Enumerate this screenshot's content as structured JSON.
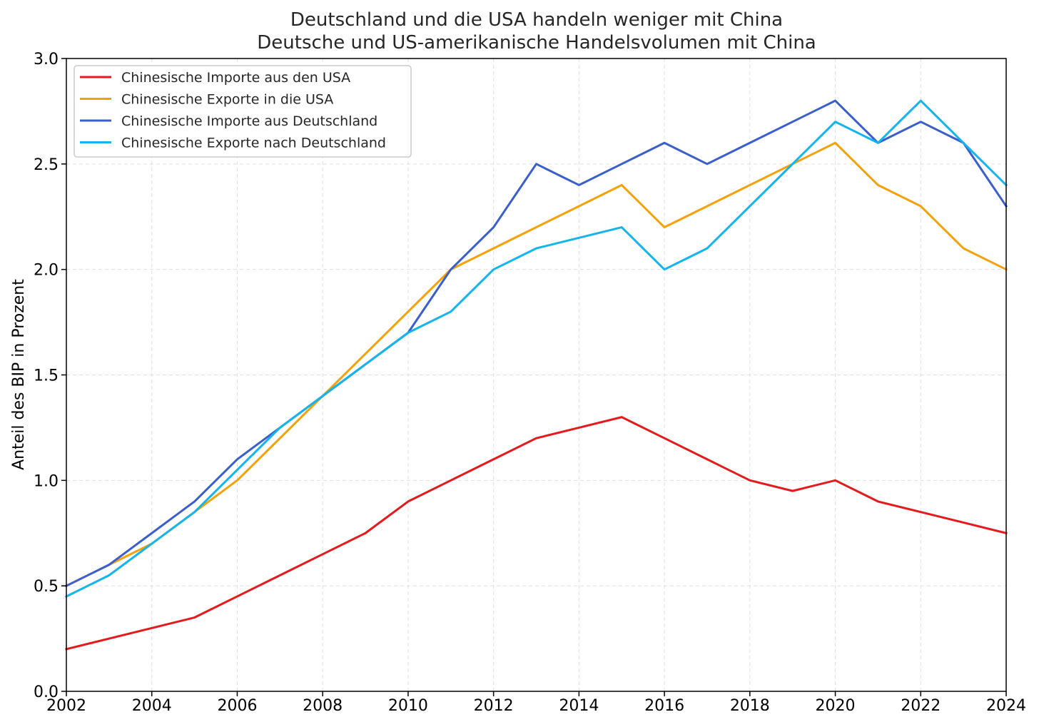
{
  "chart_data": {
    "type": "line",
    "title": "Deutschland und die USA handeln weniger mit China",
    "subtitle": "Deutsche und US-amerikanische Handelsvolumen mit China",
    "xlabel": "",
    "ylabel": "Anteil des BIP in Prozent",
    "xlim": [
      2002,
      2024
    ],
    "ylim": [
      0.0,
      3.0
    ],
    "xticks": [
      2002,
      2004,
      2006,
      2008,
      2010,
      2012,
      2014,
      2016,
      2018,
      2020,
      2022,
      2024
    ],
    "yticks": [
      "0.0",
      "0.5",
      "1.0",
      "1.5",
      "2.0",
      "2.5",
      "3.0"
    ],
    "grid": true,
    "legend_position": "top-left",
    "x": [
      2002,
      2003,
      2004,
      2005,
      2006,
      2007,
      2008,
      2009,
      2010,
      2011,
      2012,
      2013,
      2014,
      2015,
      2016,
      2017,
      2018,
      2019,
      2020,
      2021,
      2022,
      2023,
      2024
    ],
    "series": [
      {
        "name": "Chinesische Importe aus den USA",
        "color": "#e41a1c",
        "values": [
          0.2,
          0.25,
          0.3,
          0.35,
          0.45,
          0.55,
          0.65,
          0.75,
          0.9,
          1.0,
          1.1,
          1.2,
          1.25,
          1.3,
          1.2,
          1.1,
          1.0,
          0.95,
          1.0,
          0.9,
          0.85,
          0.8,
          0.75
        ]
      },
      {
        "name": "Chinesische Exporte in die USA",
        "color": "#f5a20a",
        "values": [
          0.5,
          0.6,
          0.7,
          0.85,
          1.0,
          1.2,
          1.4,
          1.6,
          1.8,
          2.0,
          2.1,
          2.2,
          2.3,
          2.4,
          2.2,
          2.3,
          2.4,
          2.5,
          2.6,
          2.4,
          2.3,
          2.1,
          2.0
        ]
      },
      {
        "name": "Chinesische Importe aus Deutschland",
        "color": "#3a5fcd",
        "values": [
          0.5,
          0.6,
          0.75,
          0.9,
          1.1,
          1.25,
          1.4,
          1.55,
          1.7,
          2.0,
          2.2,
          2.5,
          2.4,
          2.5,
          2.6,
          2.5,
          2.6,
          2.7,
          2.8,
          2.6,
          2.7,
          2.6,
          2.3
        ]
      },
      {
        "name": "Chinesische Exporte nach Deutschland",
        "color": "#14b4ec",
        "values": [
          0.45,
          0.55,
          0.7,
          0.85,
          1.05,
          1.25,
          1.4,
          1.55,
          1.7,
          1.8,
          2.0,
          2.1,
          2.15,
          2.2,
          2.0,
          2.1,
          2.3,
          2.5,
          2.7,
          2.6,
          2.8,
          2.6,
          2.4
        ]
      }
    ]
  }
}
